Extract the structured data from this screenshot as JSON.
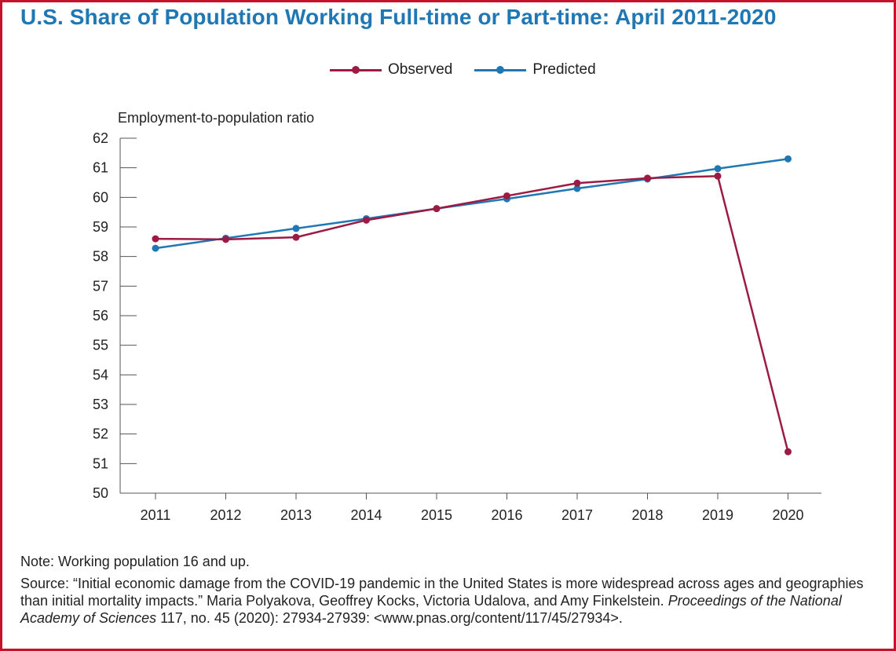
{
  "title": "U.S. Share of Population Working Full-time or Part-time: April 2011-2020",
  "legend": [
    {
      "label": "Observed",
      "color": "#9b1b43"
    },
    {
      "label": "Predicted",
      "color": "#1f78b4"
    }
  ],
  "note": "Note: Working population 16 and up.",
  "source": {
    "prefix": "Source: “Initial economic damage from the COVID-19 pandemic in the United States is more widespread across ages and geographies than initial mortality impacts.” Maria Polyakova, Geoffrey Kocks, Victoria Udalova, and Amy Finkelstein. ",
    "journal": "Proceedings of the National Academy of Sciences",
    "suffix": " 117, no. 45 (2020): 27934-27939: <www.pnas.org/content/117/45/27934>."
  },
  "colors": {
    "frame": "#c8102e",
    "title": "#1f78b4",
    "observed": "#9b1b43",
    "predicted": "#1f78b4"
  },
  "chart_data": {
    "type": "line",
    "title": "U.S. Share of Population Working Full-time or Part-time: April 2011-2020",
    "xlabel": "",
    "ylabel": "Employment-to-population ratio",
    "categories": [
      "2011",
      "2012",
      "2013",
      "2014",
      "2015",
      "2016",
      "2017",
      "2018",
      "2019",
      "2020"
    ],
    "ylim": [
      50,
      62
    ],
    "yticks": [
      50,
      51,
      52,
      53,
      54,
      55,
      56,
      57,
      58,
      59,
      60,
      61,
      62
    ],
    "grid": false,
    "legend_position": "top-center",
    "series": [
      {
        "name": "Observed",
        "color": "#9b1b43",
        "values": [
          58.6,
          58.58,
          58.65,
          59.23,
          59.62,
          60.05,
          60.48,
          60.65,
          60.72,
          51.4
        ]
      },
      {
        "name": "Predicted",
        "color": "#1f78b4",
        "values": [
          58.28,
          58.62,
          58.95,
          59.28,
          59.62,
          59.95,
          60.3,
          60.62,
          60.97,
          61.3
        ]
      }
    ]
  }
}
